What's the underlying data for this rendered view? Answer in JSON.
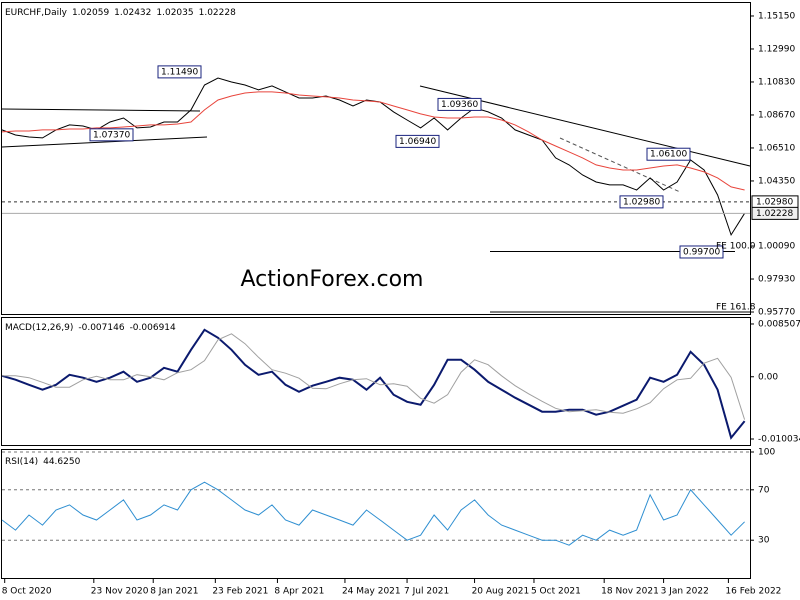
{
  "chart_data": [
    {
      "type": "line",
      "title": "EURCHF,Daily",
      "ohlc": [
        1.02059,
        1.02432,
        1.02035,
        1.02228
      ],
      "x": [
        0,
        5,
        10,
        15,
        20,
        25,
        30,
        35,
        40,
        45,
        50,
        55,
        60,
        65,
        70,
        75,
        80,
        85,
        90,
        95,
        100,
        105,
        110,
        115,
        120,
        125,
        130,
        135,
        140,
        145,
        150,
        155,
        160,
        165,
        170,
        175,
        180,
        185,
        190,
        195,
        200,
        205,
        210,
        215,
        220,
        225,
        230,
        235,
        240,
        245,
        250,
        255,
        260,
        265,
        270,
        275
      ],
      "xlim": [
        0,
        277
      ],
      "xticks": [
        {
          "value": 1,
          "label": "8 Oct 2020"
        },
        {
          "value": 34,
          "label": "23 Nov 2020"
        },
        {
          "value": 56,
          "label": "8 Jan 2021"
        },
        {
          "value": 79,
          "label": "23 Feb 2021"
        },
        {
          "value": 102,
          "label": "8 Apr 2021"
        },
        {
          "value": 127,
          "label": "24 May 2021"
        },
        {
          "value": 150,
          "label": "7 Jul 2021"
        },
        {
          "value": 175,
          "label": "20 Aug 2021"
        },
        {
          "value": 197,
          "label": "5 Oct 2021"
        },
        {
          "value": 223,
          "label": "18 Nov 2021"
        },
        {
          "value": 245,
          "label": "3 Jan 2022"
        },
        {
          "value": 269,
          "label": "16 Feb 2022"
        }
      ],
      "ylim": [
        0.9564,
        1.16
      ],
      "yticks": [
        {
          "value": 1.1515,
          "label": "1.15150"
        },
        {
          "value": 1.1299,
          "label": "1.12990"
        },
        {
          "value": 1.1083,
          "label": "1.10830"
        },
        {
          "value": 1.0867,
          "label": "1.08670"
        },
        {
          "value": 1.0651,
          "label": "1.06510"
        },
        {
          "value": 1.0435,
          "label": "1.04350"
        },
        {
          "value": 1.0009,
          "label": "1.00090"
        },
        {
          "value": 0.9793,
          "label": "0.97930"
        },
        {
          "value": 0.9577,
          "label": "0.95770"
        }
      ],
      "series": [
        {
          "color": "#000000",
          "values": [
            1.0769,
            1.0736,
            1.0723,
            1.0717,
            1.0769,
            1.0802,
            1.0795,
            1.0769,
            1.0821,
            1.0847,
            1.0782,
            1.0788,
            1.0821,
            1.0821,
            1.09,
            1.1063,
            1.1109,
            1.1083,
            1.1063,
            1.1031,
            1.1057,
            1.1018,
            1.0978,
            1.0978,
            1.0991,
            1.0965,
            1.0926,
            1.0965,
            1.0952,
            1.0887,
            1.0834,
            1.0782,
            1.0847,
            1.0769,
            1.0847,
            1.0913,
            1.0887,
            1.0847,
            1.0769,
            1.0736,
            1.0703,
            1.0586,
            1.054,
            1.0474,
            1.0428,
            1.0409,
            1.0409,
            1.0376,
            1.0455,
            1.0376,
            1.0428,
            1.0572,
            1.0507,
            1.0343,
            1.0082,
            1.0223
          ]
        },
        {
          "color": "#e8453c",
          "values": [
            1.0756,
            1.0762,
            1.0762,
            1.0769,
            1.0769,
            1.0775,
            1.0775,
            1.0782,
            1.0782,
            1.0788,
            1.0795,
            1.0802,
            1.0802,
            1.0808,
            1.0821,
            1.09,
            1.0965,
            1.0991,
            1.1011,
            1.1018,
            1.1018,
            1.1011,
            1.0998,
            1.0991,
            1.0985,
            1.0978,
            1.0965,
            1.0959,
            1.0952,
            1.0926,
            1.09,
            1.0874,
            1.0854,
            1.0847,
            1.0847,
            1.0854,
            1.0854,
            1.0834,
            1.0802,
            1.0756,
            1.0703,
            1.0664,
            1.0625,
            1.0586,
            1.054,
            1.052,
            1.0507,
            1.0507,
            1.052,
            1.0533,
            1.054,
            1.052,
            1.0494,
            1.0455,
            1.0396,
            1.0376
          ]
        }
      ],
      "annotations": [
        {
          "value": 1.1149,
          "label": "1.11490"
        },
        {
          "value": 1.0737,
          "label": "1.07370"
        },
        {
          "value": 1.0936,
          "label": "1.09360"
        },
        {
          "value": 1.0694,
          "label": "1.06940"
        },
        {
          "value": 1.061,
          "label": "1.06100"
        },
        {
          "value": 1.0298,
          "label": "1.02980"
        },
        {
          "value": 0.997,
          "label": "0.99700"
        }
      ],
      "price_markers": [
        {
          "value": 1.0298,
          "label": "1.02980"
        },
        {
          "value": 1.02228,
          "label": "1.02228"
        }
      ],
      "notes": [
        "FE 100.0",
        "FE 161.8"
      ],
      "watermark": "ActionForex.com"
    },
    {
      "type": "line",
      "title": "MACD(12,26,9)",
      "readings": [
        -0.007146,
        -0.006914
      ],
      "ylim": [
        -0.011,
        0.00947
      ],
      "yticks": [
        0.008507,
        {
          "value": 0,
          "label": "0.00"
        },
        -0.010034
      ],
      "series": [
        {
          "color": "#0b1a6e",
          "values": [
            0.00016,
            -0.00048,
            -0.00129,
            -0.00209,
            -0.00129,
            0.00032,
            -0.00016,
            -0.00081,
            -0.00016,
            0.00081,
            -0.00081,
            -0.00016,
            0.00145,
            0.00081,
            0.00435,
            0.00757,
            0.00628,
            0.00435,
            0.00193,
            0.00032,
            0.00081,
            -0.00129,
            -0.00242,
            -0.00145,
            -0.00081,
            -0.00016,
            -0.00048,
            -0.00209,
            -0.00016,
            -0.0029,
            -0.00403,
            -0.00451,
            -0.00129,
            0.00274,
            0.00274,
            0.00113,
            -0.00081,
            -0.00209,
            -0.00338,
            -0.00451,
            -0.00564,
            -0.00564,
            -0.00531,
            -0.00531,
            -0.00612,
            -0.00564,
            -0.00467,
            -0.0037,
            -0.00016,
            -0.00081,
            0.00032,
            0.00403,
            0.00193,
            -0.00209,
            -0.00982,
            -0.00715
          ]
        },
        {
          "color": "#a0a0a0",
          "values": [
            0.00016,
            0.00016,
            -0.00016,
            -0.00089,
            -0.00169,
            -0.00169,
            -0.00049,
            8e-05,
            -0.00049,
            -0.00049,
            0.00033,
            0.0,
            -0.00049,
            0.00065,
            0.00113,
            0.00258,
            0.00596,
            0.00693,
            0.00532,
            0.00314,
            0.00113,
            0.00057,
            -0.00024,
            -0.00186,
            -0.00194,
            -0.00113,
            -0.00049,
            -0.00032,
            -0.00129,
            -0.00113,
            -0.00153,
            -0.00347,
            -0.00427,
            -0.0029,
            0.00073,
            0.00274,
            0.00194,
            0.00016,
            -0.00145,
            -0.00274,
            -0.00395,
            -0.00508,
            -0.00564,
            -0.00548,
            -0.00531,
            -0.00572,
            -0.00588,
            -0.00516,
            -0.00419,
            -0.00193,
            -0.00049,
            -0.00025,
            0.00218,
            0.00298,
            -8e-05,
            -0.00691
          ]
        }
      ]
    },
    {
      "type": "line",
      "title": "RSI(14)",
      "readings": [
        "44.6250"
      ],
      "ylim": [
        0,
        100
      ],
      "yticks": [
        100,
        70,
        30
      ],
      "grid": true,
      "series": [
        {
          "color": "#2f8fd1",
          "values": [
            46,
            38,
            50,
            42,
            54,
            58,
            50,
            46,
            54,
            62,
            46,
            50,
            58,
            54,
            70,
            76,
            70,
            62,
            54,
            50,
            58,
            46,
            42,
            54,
            50,
            46,
            42,
            54,
            46,
            38,
            30,
            34,
            50,
            38,
            54,
            62,
            50,
            42,
            38,
            34,
            30,
            30,
            26,
            34,
            30,
            38,
            34,
            38,
            66,
            46,
            50,
            70,
            58,
            46,
            34,
            44.6
          ]
        }
      ]
    }
  ]
}
